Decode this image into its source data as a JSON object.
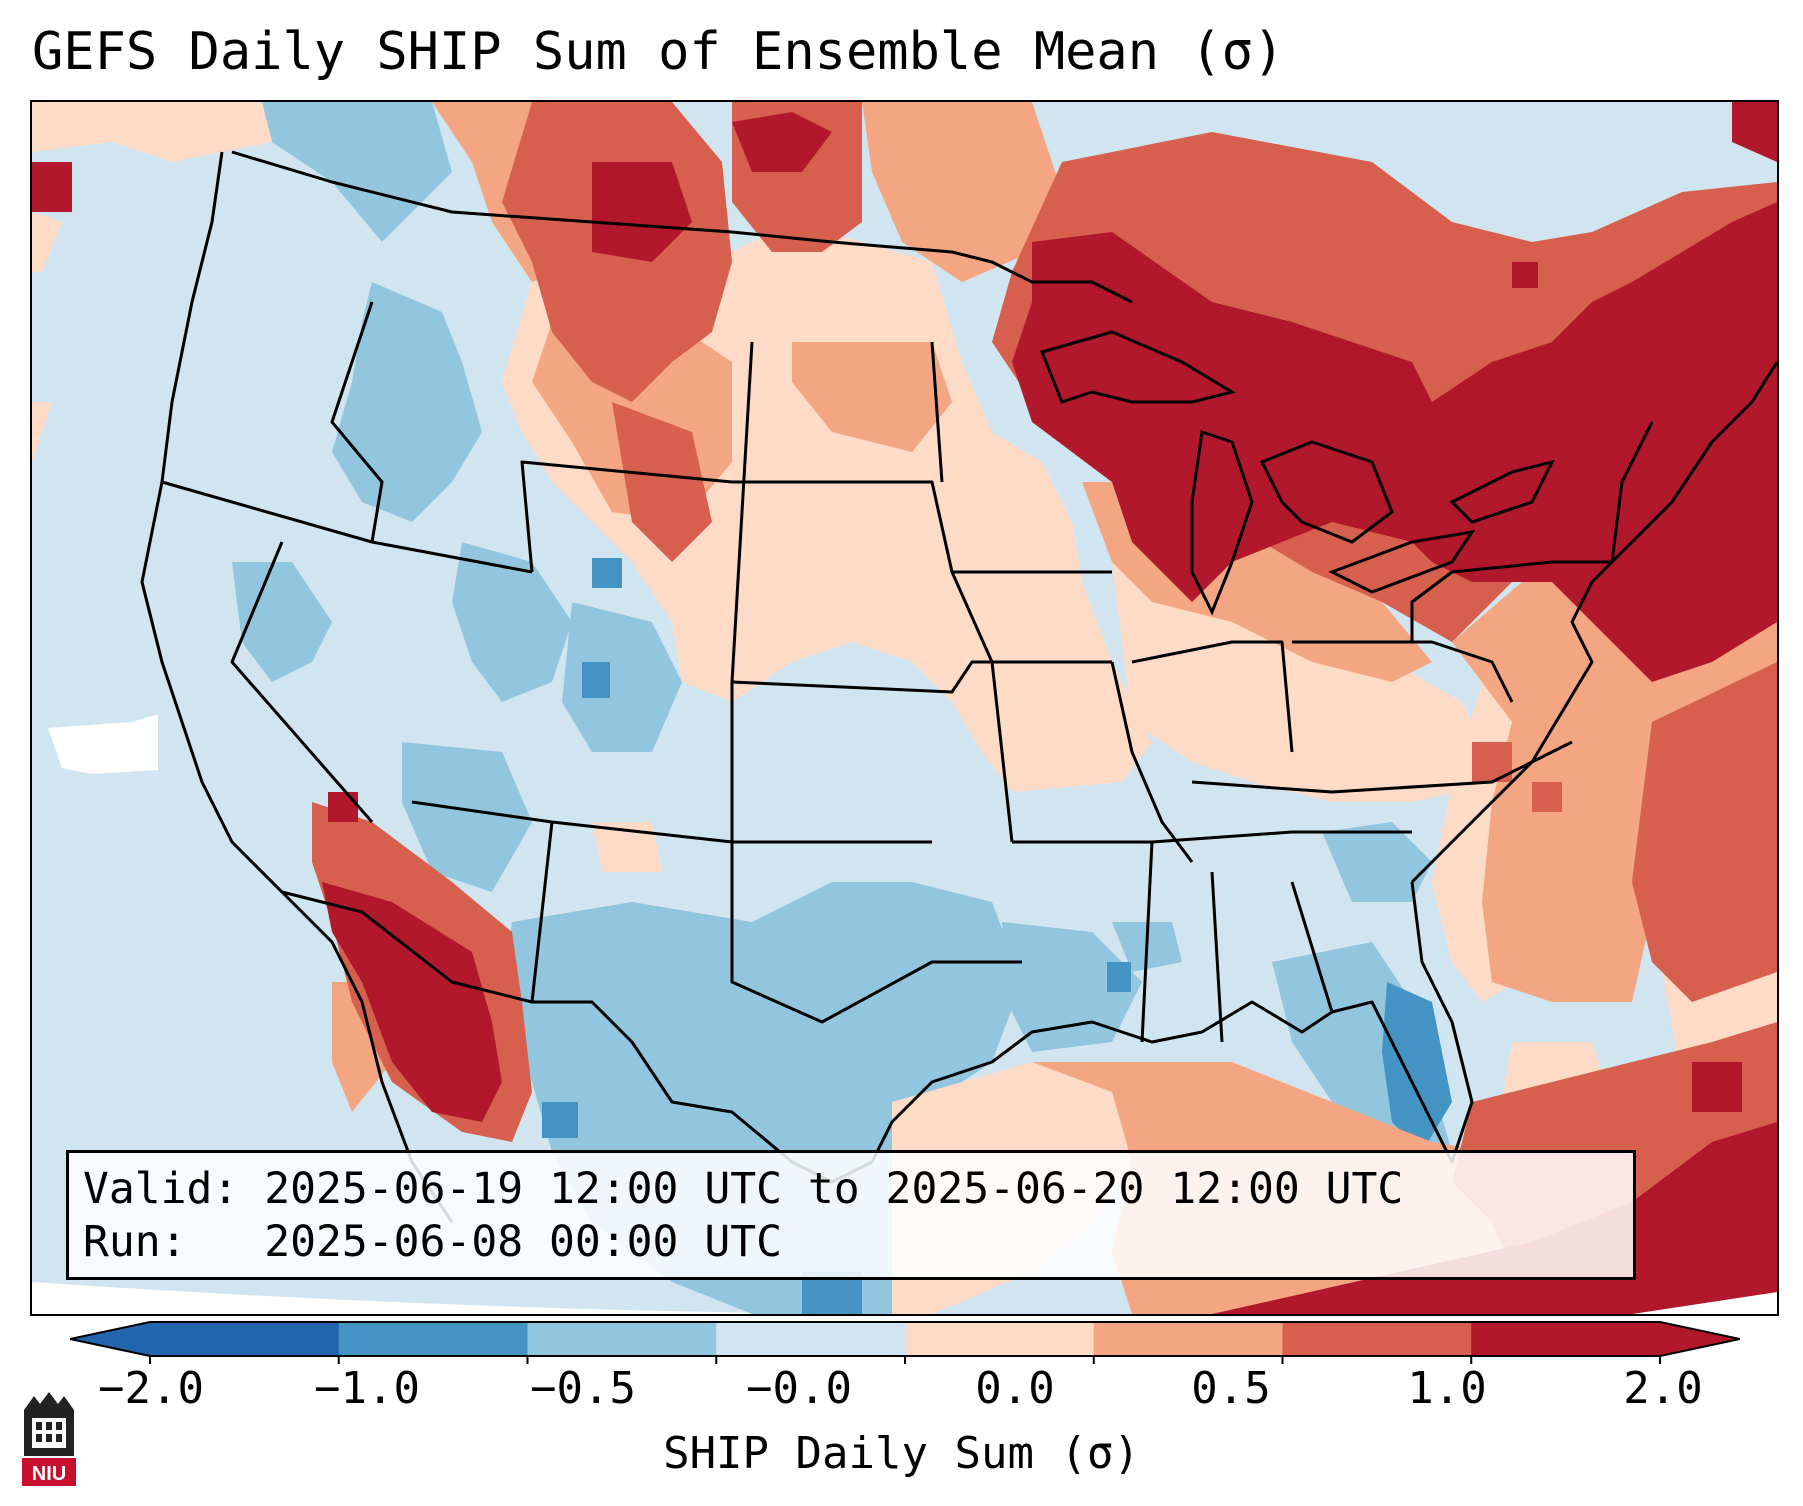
{
  "title": "GEFS Daily SHIP Sum of Ensemble Mean (σ)",
  "valid_label": "Valid:",
  "valid_text": "2025-06-19 12:00 UTC to 2025-06-20 12:00 UTC",
  "run_label": "Run:",
  "run_text": "2025-06-08 00:00 UTC",
  "colorbar": {
    "label": "SHIP Daily Sum (σ)",
    "ticks": [
      "−2.0",
      "−1.0",
      "−0.5",
      "−0.0",
      "0.0",
      "0.5",
      "1.0",
      "2.0"
    ],
    "colors": [
      "#2166ac",
      "#4393c3",
      "#92c5de",
      "#d1e5f0",
      "#fddbc7",
      "#f4a582",
      "#d6604d",
      "#b2182b"
    ],
    "extend": "both"
  },
  "logo": {
    "icon": "niu-logo-icon",
    "text": "NIU",
    "color": "#c8102e"
  },
  "colors": {
    "frame": "#000000",
    "ocean_edge": "#ffffff",
    "state_lines": "#000000"
  }
}
